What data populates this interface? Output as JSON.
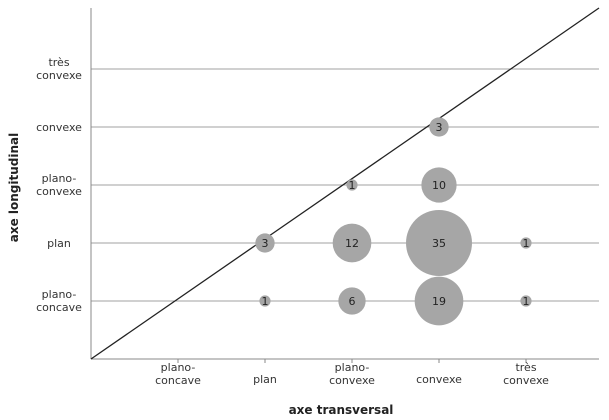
{
  "chart_data": {
    "type": "scatter",
    "variant": "bubble",
    "title": "",
    "xlabel": "axe transversal",
    "ylabel": "axe longitudinal",
    "x_categories": [
      "plano-concave",
      "plan",
      "plano-convexe",
      "convexe",
      "très convexe"
    ],
    "y_categories": [
      "plano-concave",
      "plan",
      "plano-convexe",
      "convexe",
      "très convexe"
    ],
    "grid": "horizontal",
    "reference_line": "diagonal y = x",
    "bubble_color": "#a6a6a6",
    "points": [
      {
        "x": "plan",
        "y": "plano-concave",
        "value": 1
      },
      {
        "x": "plano-convexe",
        "y": "plano-concave",
        "value": 6
      },
      {
        "x": "convexe",
        "y": "plano-concave",
        "value": 19
      },
      {
        "x": "très convexe",
        "y": "plano-concave",
        "value": 1
      },
      {
        "x": "plan",
        "y": "plan",
        "value": 3
      },
      {
        "x": "plano-convexe",
        "y": "plan",
        "value": 12
      },
      {
        "x": "convexe",
        "y": "plan",
        "value": 35
      },
      {
        "x": "très convexe",
        "y": "plan",
        "value": 1
      },
      {
        "x": "plano-convexe",
        "y": "plano-convexe",
        "value": 1
      },
      {
        "x": "convexe",
        "y": "plano-convexe",
        "value": 10
      },
      {
        "x": "convexe",
        "y": "convexe",
        "value": 3
      }
    ]
  }
}
